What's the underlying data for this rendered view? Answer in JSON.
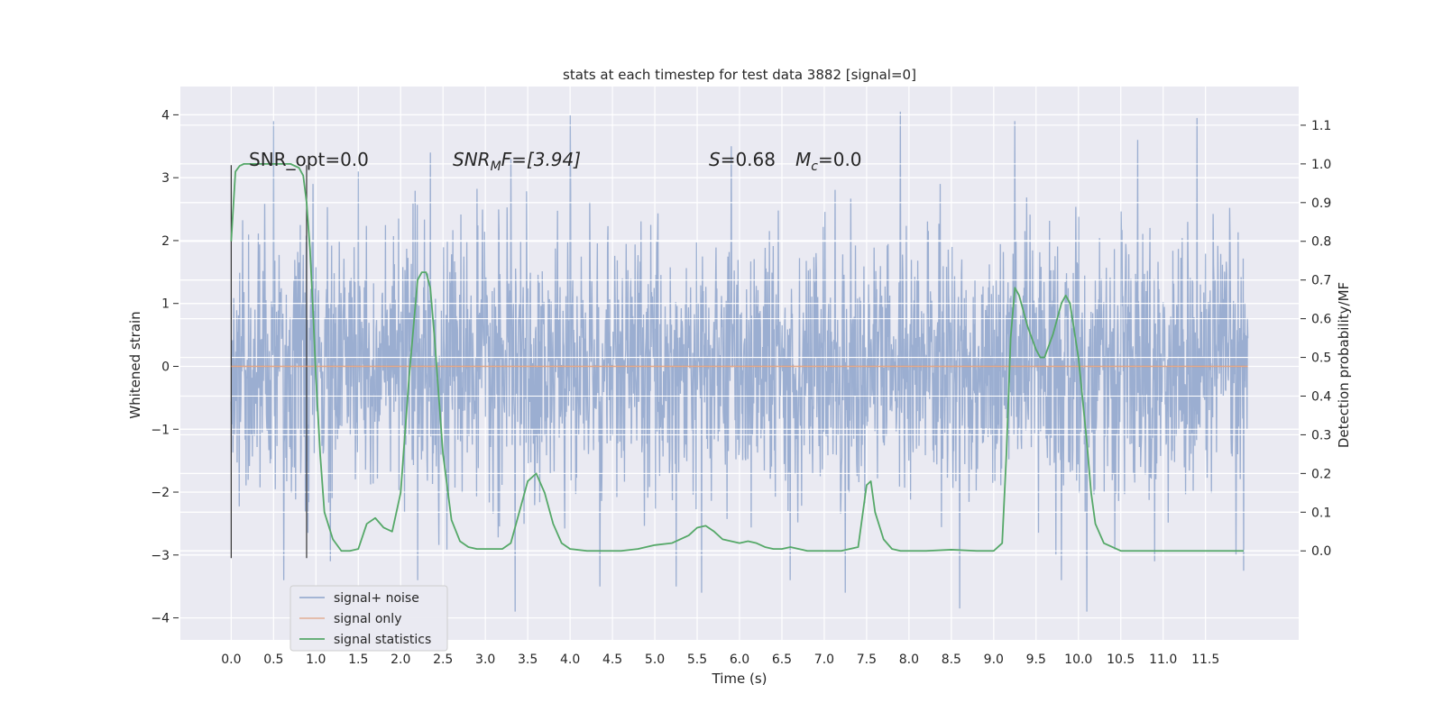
{
  "chart_data": {
    "type": "line",
    "title": "stats at each timestep for test data 3882 [signal=0]",
    "xlabel": "Time (s)",
    "ylabel": "Whitened strain",
    "y2label": "Detection probability/MF",
    "xlim": [
      -0.6,
      12.6
    ],
    "ylim": [
      -4.35,
      4.45
    ],
    "y2lim": [
      -0.23,
      1.2
    ],
    "xticks": [
      "0.0",
      "0.5",
      "1.0",
      "1.5",
      "2.0",
      "2.5",
      "3.0",
      "3.5",
      "4.0",
      "4.5",
      "5.0",
      "5.5",
      "6.0",
      "6.5",
      "7.0",
      "7.5",
      "8.0",
      "8.5",
      "9.0",
      "9.5",
      "10.0",
      "10.5",
      "11.0",
      "11.5"
    ],
    "yticks": [
      "4",
      "3",
      "2",
      "1",
      "0",
      "−1",
      "−2",
      "−3",
      "−4"
    ],
    "y2ticks": [
      "1.1",
      "1.0",
      "0.9",
      "0.8",
      "0.7",
      "0.6",
      "0.5",
      "0.4",
      "0.3",
      "0.2",
      "0.1",
      "0.0"
    ],
    "grid": true,
    "legend_position": "lower-left",
    "annotations": {
      "snr_opt": "SNR_opt=0.0",
      "snr_mf_base": "SNR",
      "snr_mf_sub": "M",
      "snr_mf_rest": "F=[3.94]",
      "s_label": "S",
      "s_value": "=0.68",
      "mc_base": "M",
      "mc_sub": "c",
      "mc_value": "=0.0"
    },
    "window_markers_x": [
      0.0,
      0.89
    ],
    "series": [
      {
        "name": "signal+ noise",
        "color": "#4c72b0",
        "noise_sigma": 1.0,
        "x_range": [
          0.0,
          12.0
        ],
        "peaks": [
          {
            "x": 0.5,
            "y": 3.9
          },
          {
            "x": 0.62,
            "y": -3.4
          },
          {
            "x": 1.17,
            "y": -3.1
          },
          {
            "x": 1.5,
            "y": 3.1
          },
          {
            "x": 2.2,
            "y": -3.4
          },
          {
            "x": 2.35,
            "y": 3.4
          },
          {
            "x": 3.35,
            "y": -3.9
          },
          {
            "x": 3.3,
            "y": 3.3
          },
          {
            "x": 4.0,
            "y": 4.0
          },
          {
            "x": 4.35,
            "y": -3.5
          },
          {
            "x": 5.25,
            "y": -3.5
          },
          {
            "x": 5.55,
            "y": -3.6
          },
          {
            "x": 5.9,
            "y": 3.5
          },
          {
            "x": 6.6,
            "y": -3.4
          },
          {
            "x": 7.25,
            "y": -3.6
          },
          {
            "x": 7.9,
            "y": 4.05
          },
          {
            "x": 8.6,
            "y": -3.85
          },
          {
            "x": 9.25,
            "y": 3.9
          },
          {
            "x": 9.8,
            "y": -3.4
          },
          {
            "x": 10.1,
            "y": -3.9
          },
          {
            "x": 10.7,
            "y": 3.6
          },
          {
            "x": 11.4,
            "y": 3.95
          },
          {
            "x": 11.95,
            "y": -3.25
          },
          {
            "x": 10.9,
            "y": -3.1
          }
        ]
      },
      {
        "name": "signal only",
        "color": "#dd8452",
        "x": [
          0.0,
          12.0
        ],
        "y": [
          0.0,
          0.0
        ]
      },
      {
        "name": "signal statistics",
        "color": "#55a868",
        "axis": "right",
        "x": [
          0.0,
          0.05,
          0.1,
          0.15,
          0.2,
          0.3,
          0.4,
          0.5,
          0.6,
          0.7,
          0.8,
          0.85,
          0.89,
          0.93,
          0.97,
          1.0,
          1.05,
          1.1,
          1.2,
          1.3,
          1.4,
          1.5,
          1.6,
          1.7,
          1.8,
          1.9,
          2.0,
          2.1,
          2.2,
          2.25,
          2.3,
          2.35,
          2.4,
          2.5,
          2.6,
          2.7,
          2.8,
          2.9,
          3.0,
          3.1,
          3.2,
          3.3,
          3.4,
          3.5,
          3.6,
          3.7,
          3.8,
          3.9,
          4.0,
          4.2,
          4.4,
          4.6,
          4.8,
          5.0,
          5.2,
          5.4,
          5.5,
          5.6,
          5.7,
          5.8,
          5.9,
          6.0,
          6.1,
          6.2,
          6.3,
          6.4,
          6.5,
          6.6,
          6.7,
          6.8,
          7.0,
          7.2,
          7.4,
          7.5,
          7.55,
          7.6,
          7.7,
          7.8,
          7.9,
          8.0,
          8.2,
          8.5,
          8.8,
          9.0,
          9.1,
          9.15,
          9.2,
          9.25,
          9.3,
          9.4,
          9.5,
          9.55,
          9.6,
          9.7,
          9.8,
          9.85,
          9.9,
          10.0,
          10.1,
          10.15,
          10.2,
          10.3,
          10.5,
          11.0,
          11.5,
          11.95
        ],
        "y": [
          0.8,
          0.98,
          0.995,
          1.0,
          1.0,
          1.0,
          1.0,
          1.0,
          1.0,
          1.0,
          0.99,
          0.97,
          0.9,
          0.78,
          0.6,
          0.45,
          0.25,
          0.1,
          0.03,
          0.0,
          0.0,
          0.005,
          0.07,
          0.085,
          0.06,
          0.05,
          0.15,
          0.45,
          0.7,
          0.72,
          0.72,
          0.68,
          0.55,
          0.25,
          0.08,
          0.025,
          0.01,
          0.005,
          0.005,
          0.005,
          0.005,
          0.02,
          0.1,
          0.18,
          0.2,
          0.15,
          0.07,
          0.02,
          0.005,
          0.0,
          0.0,
          0.0,
          0.005,
          0.015,
          0.02,
          0.04,
          0.06,
          0.065,
          0.05,
          0.03,
          0.025,
          0.02,
          0.025,
          0.02,
          0.01,
          0.005,
          0.005,
          0.01,
          0.005,
          0.0,
          0.0,
          0.0,
          0.01,
          0.17,
          0.18,
          0.1,
          0.03,
          0.005,
          0.0,
          0.0,
          0.0,
          0.003,
          0.0,
          0.0,
          0.02,
          0.25,
          0.55,
          0.68,
          0.66,
          0.58,
          0.52,
          0.5,
          0.5,
          0.56,
          0.64,
          0.66,
          0.64,
          0.5,
          0.28,
          0.15,
          0.07,
          0.02,
          0.0,
          0.0,
          0.0,
          0.0
        ]
      }
    ]
  }
}
